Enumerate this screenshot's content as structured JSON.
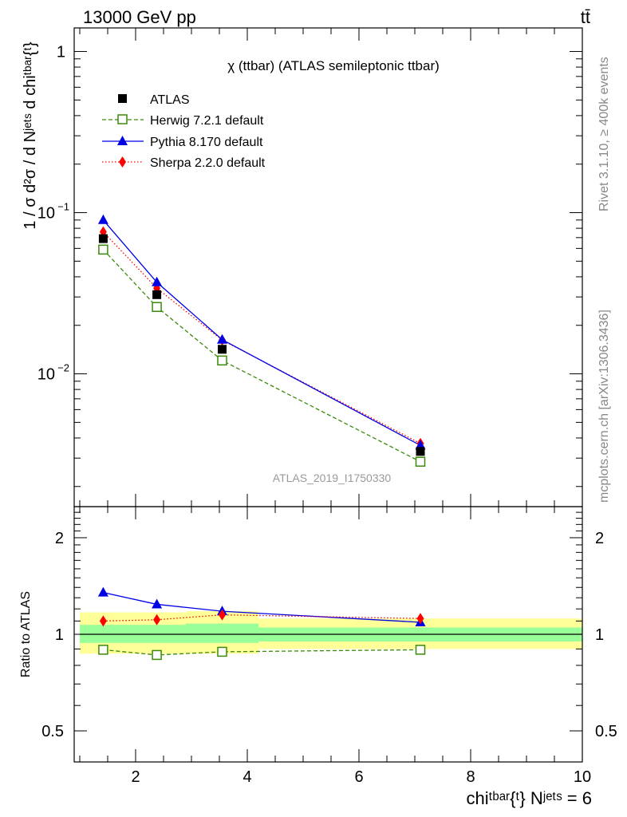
{
  "header": {
    "energy": "13000 GeV pp",
    "process": "tt̄"
  },
  "side_labels": {
    "rivet": "Rivet 3.1.10, ≥ 400k events",
    "mcplots": "mcplots.cern.ch [arXiv:1306.3436]"
  },
  "chart_data": [
    {
      "type": "line",
      "title": "χ (ttbar) (ATLAS semileptonic ttbar)",
      "watermark": "ATLAS_2019_I1750330",
      "ylabel": "1 / σ d²σ / d Nʲᵉᵗˢ d chiᵗᵇᵃʳ{ᵗ}",
      "y_scale": "log",
      "ylim": [
        0.0015,
        1.4
      ],
      "xlim": [
        0.9,
        10
      ],
      "y_ticks": [
        "10^-2",
        "10^-1",
        "1"
      ],
      "legend_position": "top-left",
      "x": [
        1.42,
        2.38,
        3.55,
        7.1
      ],
      "series": [
        {
          "name": "ATLAS",
          "marker": "square-filled",
          "color": "#000000",
          "values": [
            0.069,
            0.031,
            0.0142,
            0.0033
          ]
        },
        {
          "name": "Herwig 7.2.1 default",
          "marker": "square-open",
          "line": "dashed",
          "color": "#3a8a0a",
          "values": [
            0.059,
            0.026,
            0.0121,
            0.00285
          ]
        },
        {
          "name": "Pythia 8.170 default",
          "marker": "triangle",
          "line": "solid",
          "color": "#0000e6",
          "values": [
            0.09,
            0.037,
            0.0163,
            0.0036
          ]
        },
        {
          "name": "Sherpa 2.2.0 default",
          "marker": "diamond",
          "line": "dotted",
          "color": "#ff0000",
          "values": [
            0.076,
            0.034,
            0.0162,
            0.0037
          ]
        }
      ]
    },
    {
      "type": "line",
      "ylabel": "Ratio to ATLAS",
      "xlabel": "chiᵗᵇᵃʳ{ᵗ} Nʲᵉᵗˢ = 6",
      "y_scale": "log",
      "ylim": [
        0.4,
        2.5
      ],
      "xlim": [
        0.9,
        10
      ],
      "x_ticks": [
        "2",
        "4",
        "6",
        "8",
        "10"
      ],
      "y_ticks": [
        "0.5",
        "1",
        "2"
      ],
      "bins": [
        [
          1,
          1.9
        ],
        [
          1.9,
          2.9
        ],
        [
          2.9,
          4.2
        ],
        [
          4.2,
          10
        ]
      ],
      "band_outer": [
        [
          0.87,
          1.17
        ],
        [
          0.87,
          1.17
        ],
        [
          0.87,
          1.18
        ],
        [
          0.9,
          1.12
        ]
      ],
      "band_inner": [
        [
          0.94,
          1.07
        ],
        [
          0.94,
          1.07
        ],
        [
          0.94,
          1.08
        ],
        [
          0.95,
          1.05
        ]
      ],
      "x": [
        1.42,
        2.38,
        3.55,
        7.1
      ],
      "series": [
        {
          "name": "Herwig 7.2.1 default",
          "values": [
            0.895,
            0.862,
            0.882,
            0.895
          ]
        },
        {
          "name": "Pythia 8.170 default",
          "values": [
            1.35,
            1.24,
            1.18,
            1.09
          ]
        },
        {
          "name": "Sherpa 2.2.0 default",
          "values": [
            1.1,
            1.11,
            1.15,
            1.12
          ]
        }
      ],
      "reference": 1
    }
  ],
  "colors": {
    "atlas": "#000000",
    "herwig": "#3a8a0a",
    "pythia": "#0000e6",
    "sherpa": "#ff0000",
    "band_outer": "#ffff99",
    "band_inner": "#99ff99",
    "watermark": "#999999",
    "side_text": "#888888"
  }
}
